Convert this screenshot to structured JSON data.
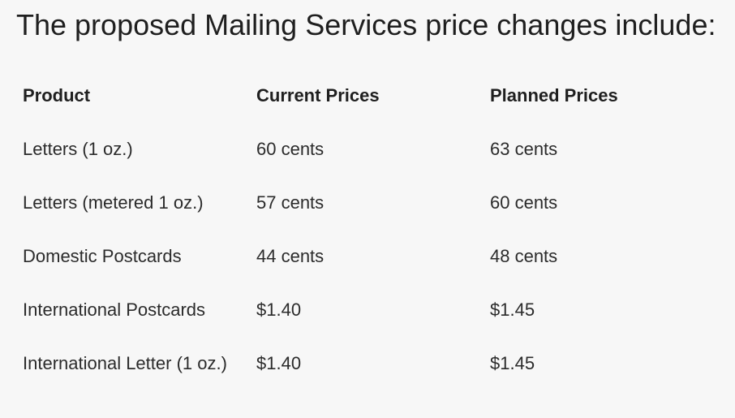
{
  "heading": "The proposed Mailing Services price changes include:",
  "table": {
    "headers": {
      "product": "Product",
      "current": "Current Prices",
      "planned": "Planned Prices"
    },
    "rows": [
      {
        "product": "Letters (1 oz.)",
        "current": "60 cents",
        "planned": "63 cents"
      },
      {
        "product": "Letters (metered 1 oz.)",
        "current": "57 cents",
        "planned": "60 cents"
      },
      {
        "product": "Domestic Postcards",
        "current": "44 cents",
        "planned": "48 cents"
      },
      {
        "product": "International Postcards",
        "current": "$1.40",
        "planned": "$1.45"
      },
      {
        "product": "International Letter (1 oz.)",
        "current": "$1.40",
        "planned": "$1.45"
      }
    ]
  }
}
